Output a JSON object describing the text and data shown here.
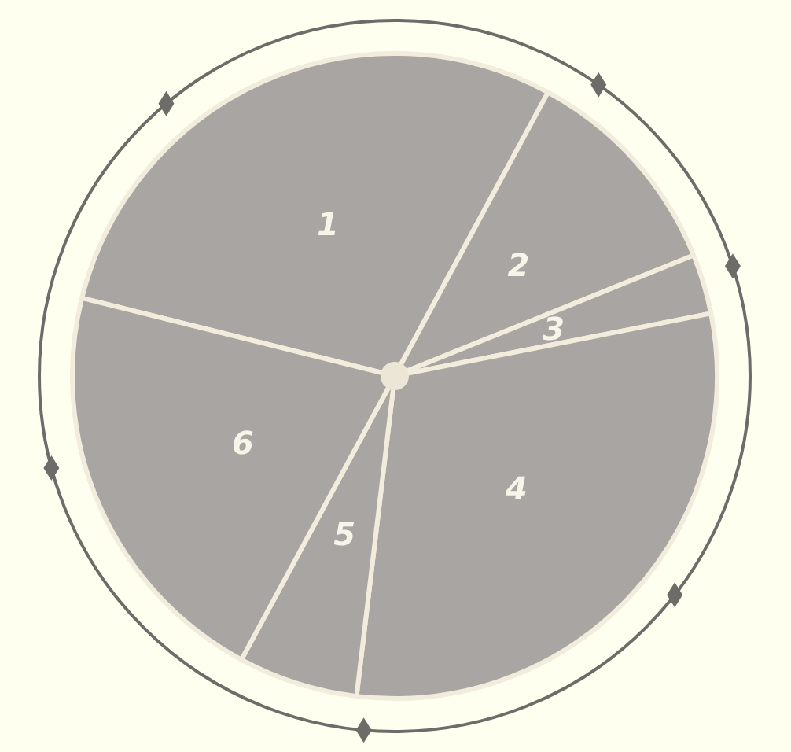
{
  "chart_data": {
    "type": "pie",
    "categories": [
      "1",
      "2",
      "3",
      "4",
      "5",
      "6"
    ],
    "values": [
      29,
      11,
      3,
      30,
      6,
      21
    ],
    "colors": [
      "#a9a5a3",
      "#a9a5a3",
      "#a9a5a3",
      "#a9a5a3",
      "#a9a5a3",
      "#a9a5a3"
    ],
    "legend": false
  }
}
